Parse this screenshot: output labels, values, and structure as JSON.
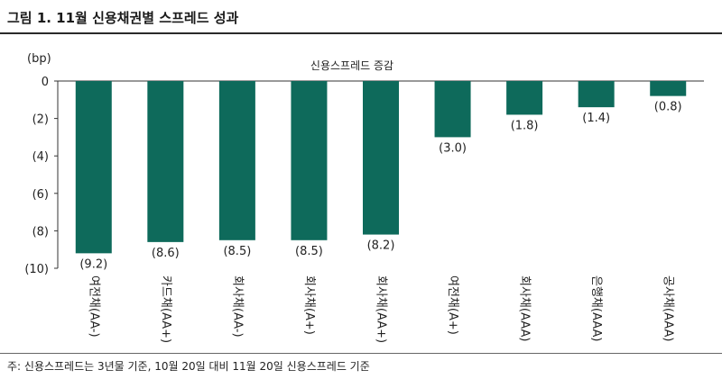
{
  "header": {
    "title": "그림 1. 11월 신용채권별 스프레드 성과"
  },
  "footer": {
    "note": "주: 신용스프레드는 3년물 기준, 10월 20일 대비 11월 20일 신용스프레드 기준"
  },
  "chart_data": {
    "type": "bar",
    "title": "",
    "unit_label": "(bp)",
    "legend": [
      "신용스프레드 증감"
    ],
    "categories": [
      "여전채(AA-)",
      "카드채(AA+)",
      "회사채(AA-)",
      "회사채(A+)",
      "회사채(AA+)",
      "여전채(A+)",
      "회사채(AAA)",
      "은행채(AAA)",
      "공사채(AAA)"
    ],
    "values": [
      -9.2,
      -8.6,
      -8.5,
      -8.5,
      -8.2,
      -3.0,
      -1.8,
      -1.4,
      -0.8
    ],
    "value_labels": [
      "(9.2)",
      "(8.6)",
      "(8.5)",
      "(8.5)",
      "(8.2)",
      "(3.0)",
      "(1.8)",
      "(1.4)",
      "(0.8)"
    ],
    "ylim": [
      -10,
      0
    ],
    "yticks": [
      0,
      -2,
      -4,
      -6,
      -8,
      -10
    ],
    "ytick_labels": [
      "0",
      "(2)",
      "(4)",
      "(6)",
      "(8)",
      "(10)"
    ],
    "bar_color": "#0e6a5b",
    "grid": false,
    "legend_position": "top-center"
  }
}
